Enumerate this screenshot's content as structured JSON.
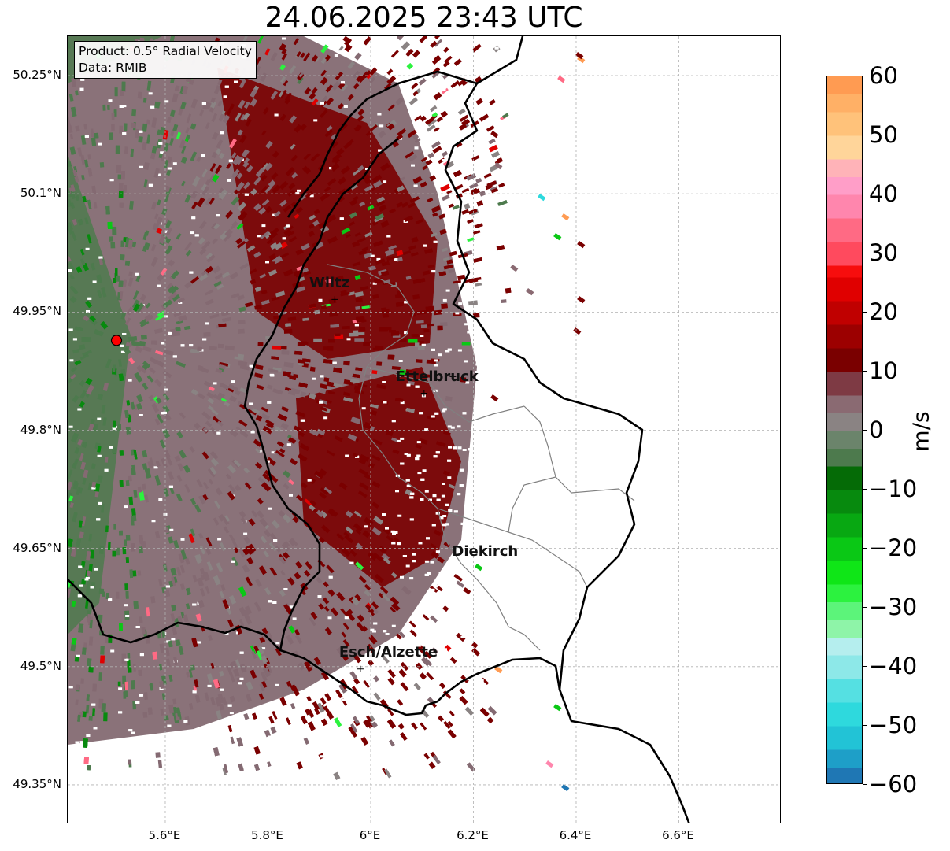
{
  "title": "24.06.2025 23:43 UTC",
  "info_box": {
    "product_line": "Product: 0.5° Radial Velocity",
    "data_line": "Data: RMIB"
  },
  "map": {
    "lon_range": [
      5.41,
      6.8
    ],
    "lat_range": [
      49.3,
      50.3
    ],
    "radar_site": {
      "lon": 5.505,
      "lat": 49.914
    },
    "lat_ticks": [
      {
        "value": 50.25,
        "label": "50.25°N"
      },
      {
        "value": 50.1,
        "label": "50.1°N"
      },
      {
        "value": 49.95,
        "label": "49.95°N"
      },
      {
        "value": 49.8,
        "label": "49.8°N"
      },
      {
        "value": 49.65,
        "label": "49.65°N"
      },
      {
        "value": 49.5,
        "label": "49.5°N"
      },
      {
        "value": 49.35,
        "label": "49.35°N"
      }
    ],
    "lon_ticks": [
      {
        "value": 5.6,
        "label": "5.6°E"
      },
      {
        "value": 5.8,
        "label": "5.8°E"
      },
      {
        "value": 6.0,
        "label": "6°E"
      },
      {
        "value": 6.2,
        "label": "6.2°E"
      },
      {
        "value": 6.4,
        "label": "6.4°E"
      },
      {
        "value": 6.6,
        "label": "6.6°E"
      }
    ],
    "cities": [
      {
        "name": "Wiltz",
        "lon": 5.93,
        "lat": 49.966
      },
      {
        "name": "Ettelbruck",
        "lon": 6.104,
        "lat": 49.847
      },
      {
        "name": "Diekirch",
        "lon": 6.16,
        "lat": 49.868
      },
      {
        "name": "Esch/Alzette",
        "lon": 5.98,
        "lat": 49.497
      }
    ],
    "city_labels": [
      {
        "name": "Wiltz",
        "lon": 5.882,
        "lat": 49.985
      },
      {
        "name": "Ettelbruck",
        "lon": 6.05,
        "lat": 49.866
      },
      {
        "name": "Diekirch",
        "lon": 6.16,
        "lat": 49.645
      },
      {
        "name": "Esch/Alzette",
        "lon": 5.94,
        "lat": 49.517
      }
    ],
    "border_color": "#000000",
    "canton_color": "#808080",
    "grid": true
  },
  "colorbar": {
    "unit": "m/s",
    "min": -60,
    "max": 60,
    "ticks": [
      "60",
      "50",
      "40",
      "30",
      "20",
      "10",
      "0",
      "−10",
      "−20",
      "−30",
      "−40",
      "−50",
      "−60"
    ],
    "stops": [
      {
        "from": -60,
        "to": -57,
        "color": "#1f77b4"
      },
      {
        "from": -57,
        "to": -54,
        "color": "#1e9fc8"
      },
      {
        "from": -54,
        "to": -50,
        "color": "#22c3d6"
      },
      {
        "from": -50,
        "to": -46,
        "color": "#2ed9dd"
      },
      {
        "from": -46,
        "to": -42,
        "color": "#55e0e2"
      },
      {
        "from": -42,
        "to": -38,
        "color": "#8de8e8"
      },
      {
        "from": -38,
        "to": -35,
        "color": "#b5eeee"
      },
      {
        "from": -35,
        "to": -32,
        "color": "#8ef4a8"
      },
      {
        "from": -32,
        "to": -29,
        "color": "#5cf47a"
      },
      {
        "from": -29,
        "to": -26,
        "color": "#2cf23f"
      },
      {
        "from": -26,
        "to": -22,
        "color": "#0fe617"
      },
      {
        "from": -22,
        "to": -18,
        "color": "#0ac815"
      },
      {
        "from": -18,
        "to": -14,
        "color": "#08a812"
      },
      {
        "from": -14,
        "to": -10,
        "color": "#078a0e"
      },
      {
        "from": -10,
        "to": -6,
        "color": "#056b06"
      },
      {
        "from": -6,
        "to": -3,
        "color": "#4d7a4d"
      },
      {
        "from": -3,
        "to": 0,
        "color": "#6b846b"
      },
      {
        "from": 0,
        "to": 3,
        "color": "#8a8383"
      },
      {
        "from": 3,
        "to": 6,
        "color": "#8a6a72"
      },
      {
        "from": 6,
        "to": 10,
        "color": "#7e3a44"
      },
      {
        "from": 10,
        "to": 14,
        "color": "#7a0000"
      },
      {
        "from": 14,
        "to": 18,
        "color": "#9c0000"
      },
      {
        "from": 18,
        "to": 22,
        "color": "#c00000"
      },
      {
        "from": 22,
        "to": 26,
        "color": "#e00000"
      },
      {
        "from": 26,
        "to": 28,
        "color": "#f70d0d"
      },
      {
        "from": 28,
        "to": 32,
        "color": "#ff4a5e"
      },
      {
        "from": 32,
        "to": 36,
        "color": "#ff6a84"
      },
      {
        "from": 36,
        "to": 40,
        "color": "#ff86ad"
      },
      {
        "from": 40,
        "to": 43,
        "color": "#ff9ec8"
      },
      {
        "from": 43,
        "to": 46,
        "color": "#ffb3b8"
      },
      {
        "from": 46,
        "to": 50,
        "color": "#ffd59a"
      },
      {
        "from": 50,
        "to": 54,
        "color": "#ffc27a"
      },
      {
        "from": 54,
        "to": 57,
        "color": "#ffb066"
      },
      {
        "from": 57,
        "to": 60,
        "color": "#ff9b52"
      }
    ]
  },
  "echo_colors": {
    "background_gray": "#8a8383",
    "mauve": "#846a72",
    "dark_red": "#7a0000",
    "green_dark": "#4d7a4d",
    "green": "#078a0e"
  }
}
